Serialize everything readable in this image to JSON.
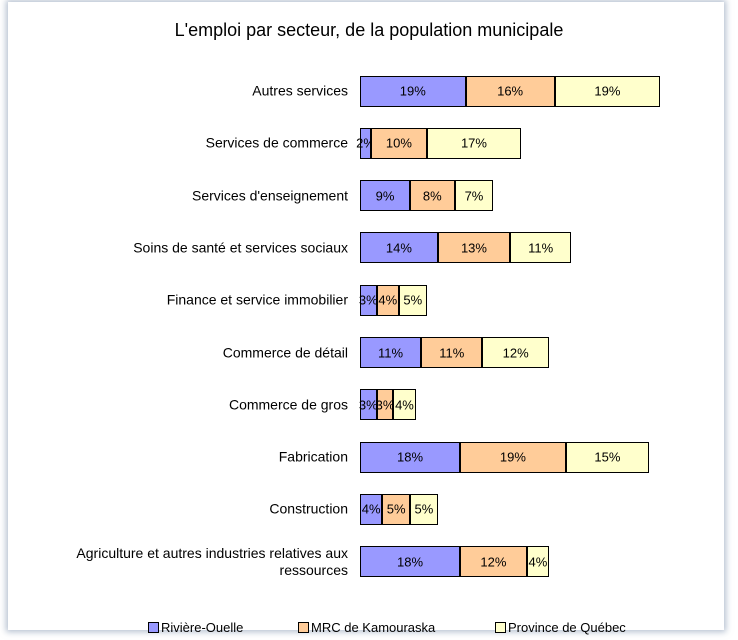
{
  "chart_data": {
    "type": "stacked-bar-horizontal",
    "title": "L'emploi par secteur, de la population municipale",
    "categories": [
      "Autres services",
      "Services de commerce",
      "Services d'enseignement",
      "Soins de santé et services sociaux",
      "Finance et service immobilier",
      "Commerce de détail",
      "Commerce de gros",
      "Fabrication",
      "Construction",
      "Agriculture et autres industries relatives aux ressources"
    ],
    "series": [
      {
        "name": "Rivière-Ouelle",
        "color": "#9999ff",
        "values": [
          19,
          2,
          9,
          14,
          3,
          11,
          3,
          18,
          4,
          18
        ],
        "value_labels": [
          "19%",
          "2%",
          "9%",
          "14%",
          "3%",
          "11%",
          "3%",
          "18%",
          "4%",
          "18%"
        ]
      },
      {
        "name": "MRC de Kamouraska",
        "color": "#ffcc99",
        "values": [
          16,
          10,
          8,
          13,
          4,
          11,
          3,
          19,
          5,
          12
        ],
        "value_labels": [
          "16%",
          "10%",
          "8%",
          "13%",
          "4%",
          "11%",
          "3%",
          "19%",
          "5%",
          "12%"
        ]
      },
      {
        "name": "Province de Québec",
        "color": "#ffffcc",
        "values": [
          19,
          17,
          7,
          11,
          5,
          12,
          4,
          15,
          5,
          4
        ],
        "value_labels": [
          "19%",
          "17%",
          "7%",
          "11%",
          "5%",
          "12%",
          "4%",
          "15%",
          "5%",
          "4%"
        ]
      }
    ],
    "legend": "bottom"
  }
}
